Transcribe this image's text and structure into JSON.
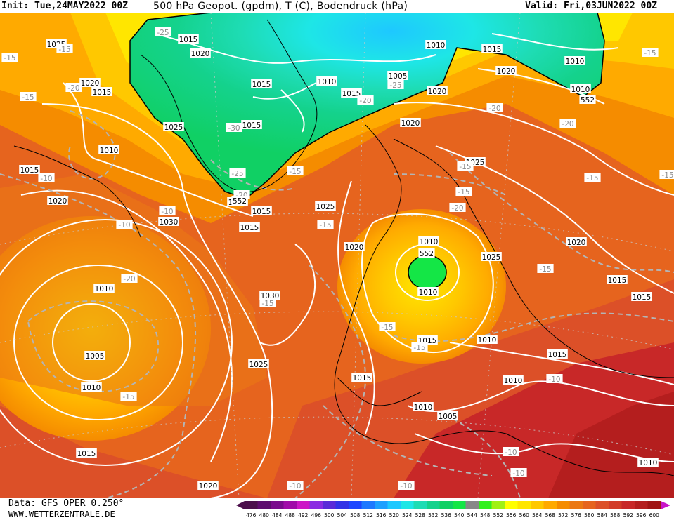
{
  "header": {
    "init": "Init: Tue,24MAY2022 00Z",
    "title": "500 hPa Geopot. (gpdm), T (C), Bodendruck (hPa)",
    "valid": "Valid: Fri,03JUN2022 00Z"
  },
  "footer": {
    "data_source": "Data: GFS OPER 0.250°",
    "website": "WWW.WETTERZENTRALE.DE"
  },
  "colors": {
    "c476": "#4b0f4b",
    "c480": "#5e0c6e",
    "c484": "#7a0a8c",
    "c488": "#a00aa8",
    "c492": "#cc16c6",
    "c496": "#8a2be2",
    "c500": "#5a2ad8",
    "c504": "#3232e6",
    "c508": "#1e46ff",
    "c512": "#1e78ff",
    "c516": "#1ea0ff",
    "c520": "#1ec8ff",
    "c524": "#1ee6e6",
    "c528": "#1edcb4",
    "c532": "#14d28c",
    "c536": "#10d064",
    "c540": "#14e646",
    "c548": "#32f01e",
    "c552": "#a0f014",
    "c556": "#ffff00",
    "c560": "#ffe600",
    "c564": "#ffc800",
    "c568": "#ffaa00",
    "c572": "#f58c00",
    "c576": "#eb7814",
    "c580": "#e6641e",
    "c584": "#dc5028",
    "c588": "#d23c28",
    "c592": "#c82828",
    "c596": "#b41e1e",
    "c600": "#a01414"
  },
  "scale_bar": {
    "values": [
      "476",
      "480",
      "484",
      "488",
      "492",
      "496",
      "500",
      "504",
      "508",
      "512",
      "516",
      "520",
      "524",
      "528",
      "532",
      "536",
      "540",
      "544",
      "548",
      "552",
      "556",
      "560",
      "564",
      "568",
      "572",
      "576",
      "580",
      "584",
      "588",
      "592",
      "596",
      "600"
    ]
  },
  "map": {
    "pressure_labels": [
      {
        "t": "1025"
      },
      {
        "t": "1015"
      },
      {
        "t": "1020"
      },
      {
        "t": "1020"
      },
      {
        "t": "1015"
      },
      {
        "t": "1025"
      },
      {
        "t": "1010"
      },
      {
        "t": "1015"
      },
      {
        "t": "1020"
      },
      {
        "t": "1030"
      },
      {
        "t": "1015"
      },
      {
        "t": "1010"
      },
      {
        "t": "1005"
      },
      {
        "t": "1010"
      },
      {
        "t": "1015"
      },
      {
        "t": "1020"
      },
      {
        "t": "1010"
      },
      {
        "t": "1015"
      },
      {
        "t": "1015"
      },
      {
        "t": "1010"
      },
      {
        "t": "1005"
      },
      {
        "t": "1015"
      },
      {
        "t": "1010"
      },
      {
        "t": "1020"
      },
      {
        "t": "1010"
      },
      {
        "t": "1020"
      },
      {
        "t": "1025"
      },
      {
        "t": "1025"
      },
      {
        "t": "1015"
      },
      {
        "t": "1010"
      },
      {
        "t": "1020"
      },
      {
        "t": "1025"
      },
      {
        "t": "1020"
      },
      {
        "t": "1015"
      },
      {
        "t": "1015"
      },
      {
        "t": "1010"
      },
      {
        "t": "1015"
      },
      {
        "t": "1010"
      },
      {
        "t": "1015"
      },
      {
        "t": "1030"
      },
      {
        "t": "1025"
      },
      {
        "t": "1015"
      },
      {
        "t": "1010"
      },
      {
        "t": "1010"
      },
      {
        "t": "1005"
      },
      {
        "t": "1010"
      },
      {
        "t": "1010"
      },
      {
        "t": "1020"
      },
      {
        "t": "1015"
      }
    ],
    "temp_labels": [
      {
        "t": "-25"
      },
      {
        "t": "-15"
      },
      {
        "t": "-20"
      },
      {
        "t": "-15"
      },
      {
        "t": "-10"
      },
      {
        "t": "-10"
      },
      {
        "t": "-30"
      },
      {
        "t": "-25"
      },
      {
        "t": "-20"
      },
      {
        "t": "-15"
      },
      {
        "t": "-25"
      },
      {
        "t": "-20"
      },
      {
        "t": "-20"
      },
      {
        "t": "-20"
      },
      {
        "t": "-15"
      },
      {
        "t": "-15"
      },
      {
        "t": "-20"
      },
      {
        "t": "-15"
      },
      {
        "t": "-15"
      },
      {
        "t": "-15"
      },
      {
        "t": "-15"
      },
      {
        "t": "-15"
      },
      {
        "t": "-20"
      },
      {
        "t": "-15"
      },
      {
        "t": "-15"
      },
      {
        "t": "-15"
      },
      {
        "t": "-15"
      },
      {
        "t": "-15"
      },
      {
        "t": "-10"
      },
      {
        "t": "-10"
      },
      {
        "t": "-10"
      },
      {
        "t": "-10"
      },
      {
        "t": "-10"
      },
      {
        "t": "-10"
      }
    ],
    "geopot_labels": [
      {
        "t": "552"
      },
      {
        "t": "552"
      },
      {
        "t": "552"
      }
    ]
  }
}
